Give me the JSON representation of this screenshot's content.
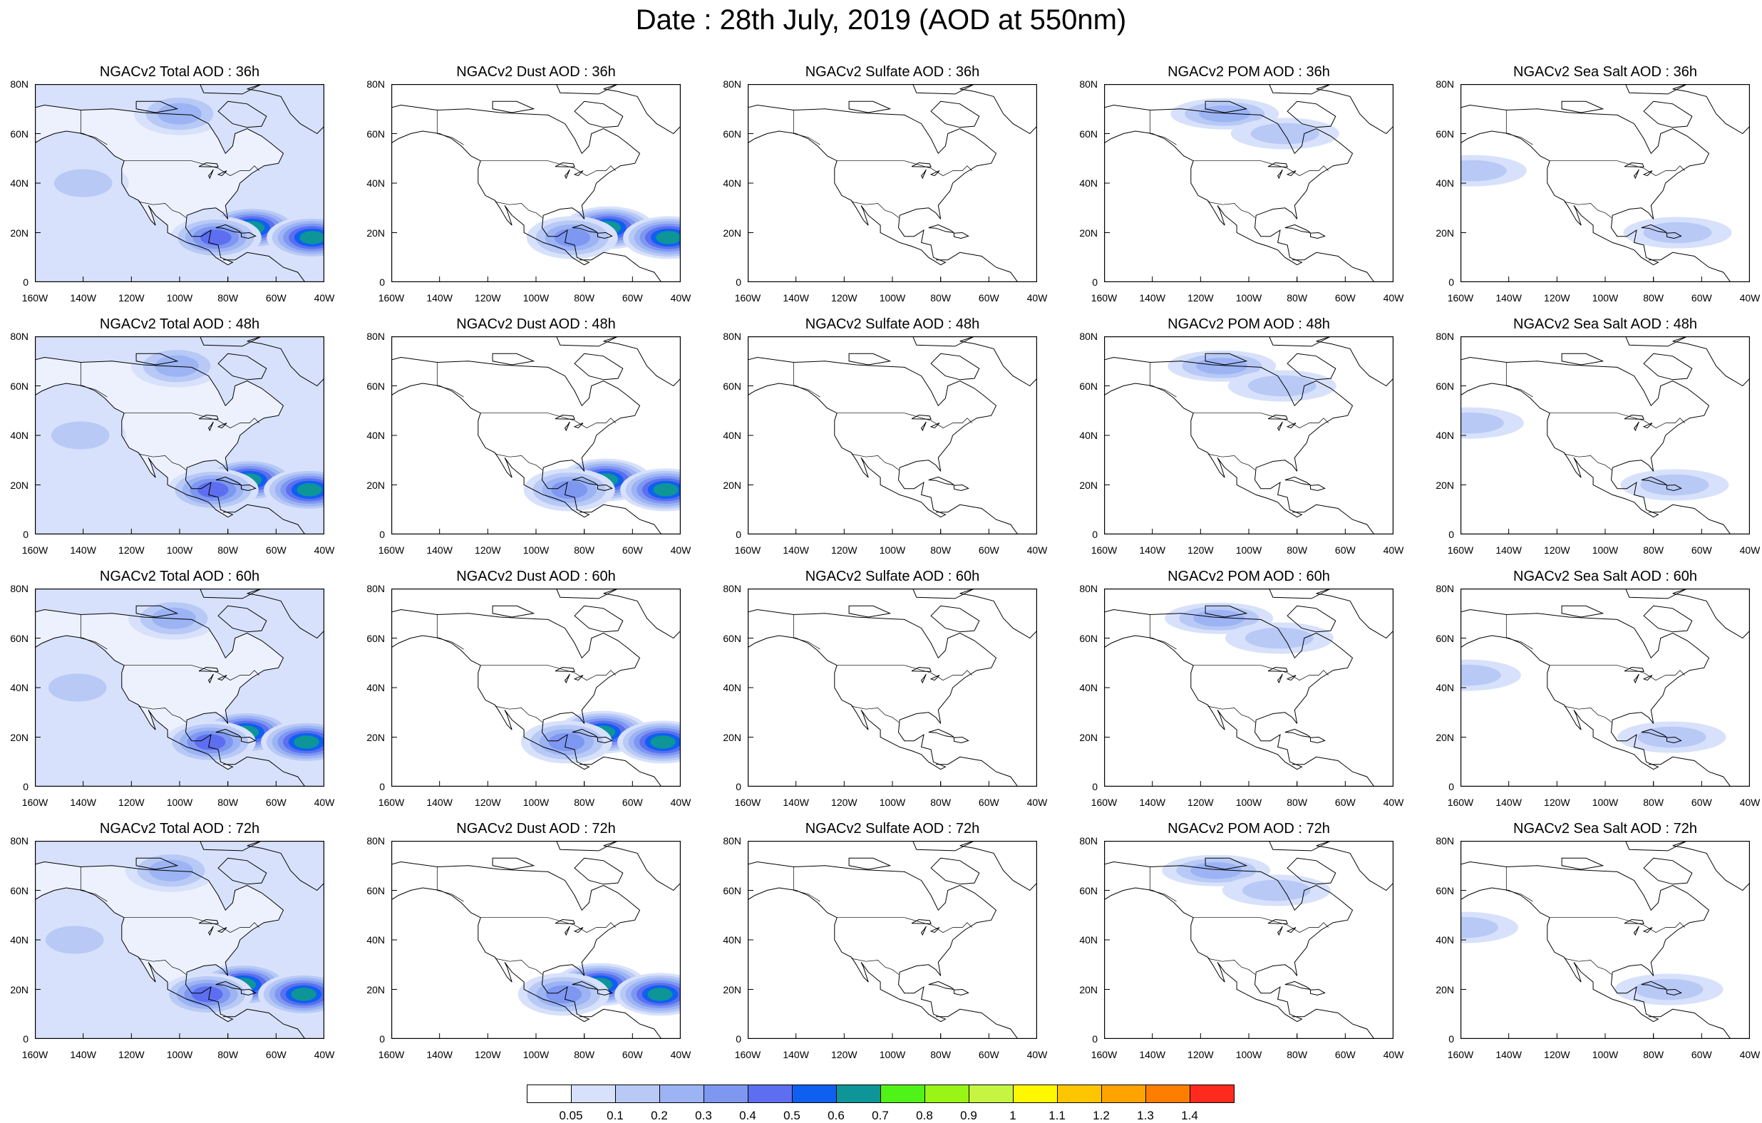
{
  "page": {
    "title": "Date : 28th July, 2019 (AOD at 550nm)"
  },
  "map": {
    "type": "choropleth-grid",
    "variable": "AOD at 550nm",
    "lon_range": [
      -160,
      -40
    ],
    "lat_range": [
      0,
      80
    ],
    "y_ticks": [
      "80N",
      "60N",
      "40N",
      "20N",
      "0"
    ],
    "x_ticks": [
      "160W",
      "140W",
      "120W",
      "100W",
      "80W",
      "60W",
      "40W"
    ],
    "rows": [
      {
        "hour": "36h",
        "panels": [
          {
            "title": "NGACv2 Total AOD : 36h",
            "field": "total"
          },
          {
            "title": "NGACv2 Dust AOD : 36h",
            "field": "dust"
          },
          {
            "title": "NGACv2 Sulfate AOD : 36h",
            "field": "sulfate"
          },
          {
            "title": "NGACv2 POM AOD : 36h",
            "field": "pom"
          },
          {
            "title": "NGACv2 Sea Salt AOD : 36h",
            "field": "seasalt"
          }
        ]
      },
      {
        "hour": "48h",
        "panels": [
          {
            "title": "NGACv2 Total AOD : 48h",
            "field": "total"
          },
          {
            "title": "NGACv2 Dust AOD : 48h",
            "field": "dust"
          },
          {
            "title": "NGACv2 Sulfate AOD : 48h",
            "field": "sulfate"
          },
          {
            "title": "NGACv2 POM AOD : 48h",
            "field": "pom"
          },
          {
            "title": "NGACv2 Sea Salt AOD : 48h",
            "field": "seasalt"
          }
        ]
      },
      {
        "hour": "60h",
        "panels": [
          {
            "title": "NGACv2 Total AOD : 60h",
            "field": "total"
          },
          {
            "title": "NGACv2 Dust AOD : 60h",
            "field": "dust"
          },
          {
            "title": "NGACv2 Sulfate AOD : 60h",
            "field": "sulfate"
          },
          {
            "title": "NGACv2 POM AOD : 60h",
            "field": "pom"
          },
          {
            "title": "NGACv2 Sea Salt AOD : 60h",
            "field": "seasalt"
          }
        ]
      },
      {
        "hour": "72h",
        "panels": [
          {
            "title": "NGACv2 Total AOD : 72h",
            "field": "total"
          },
          {
            "title": "NGACv2 Dust AOD : 72h",
            "field": "dust"
          },
          {
            "title": "NGACv2 Sulfate AOD : 72h",
            "field": "sulfate"
          },
          {
            "title": "NGACv2 POM AOD : 72h",
            "field": "pom"
          },
          {
            "title": "NGACv2 Sea Salt  AOD : 72h",
            "field": "seasalt"
          }
        ]
      }
    ],
    "plumes": {
      "total": [
        {
          "lon": -70,
          "lat": 22,
          "value": 0.6
        },
        {
          "lon": -45,
          "lat": 18,
          "value": 0.6
        },
        {
          "lon": -85,
          "lat": 18,
          "value": 0.4
        },
        {
          "lon": -100,
          "lat": 68,
          "value": 0.2
        },
        {
          "lon": -140,
          "lat": 40,
          "value": 0.1
        }
      ],
      "dust": [
        {
          "lon": -70,
          "lat": 22,
          "value": 0.6
        },
        {
          "lon": -45,
          "lat": 18,
          "value": 0.6
        },
        {
          "lon": -85,
          "lat": 18,
          "value": 0.3
        }
      ],
      "sulfate": [],
      "pom": [
        {
          "lon": -110,
          "lat": 68,
          "value": 0.2
        },
        {
          "lon": -85,
          "lat": 60,
          "value": 0.1
        }
      ],
      "seasalt": [
        {
          "lon": -155,
          "lat": 45,
          "value": 0.1
        },
        {
          "lon": -70,
          "lat": 20,
          "value": 0.1
        }
      ]
    },
    "colorbar": {
      "labels": [
        "0.05",
        "0.1",
        "0.2",
        "0.3",
        "0.4",
        "0.5",
        "0.6",
        "0.7",
        "0.8",
        "0.9",
        "1",
        "1.1",
        "1.2",
        "1.3",
        "1.4"
      ],
      "colors": [
        "#ffffff",
        "#d7e1fb",
        "#b8c9f6",
        "#9cb4f4",
        "#7e97f1",
        "#5d6ff0",
        "#0f60f0",
        "#0e9597",
        "#4ff318",
        "#98f515",
        "#c6f541",
        "#fff800",
        "#fec600",
        "#fea300",
        "#ff7e00",
        "#ff2a1e"
      ]
    }
  }
}
